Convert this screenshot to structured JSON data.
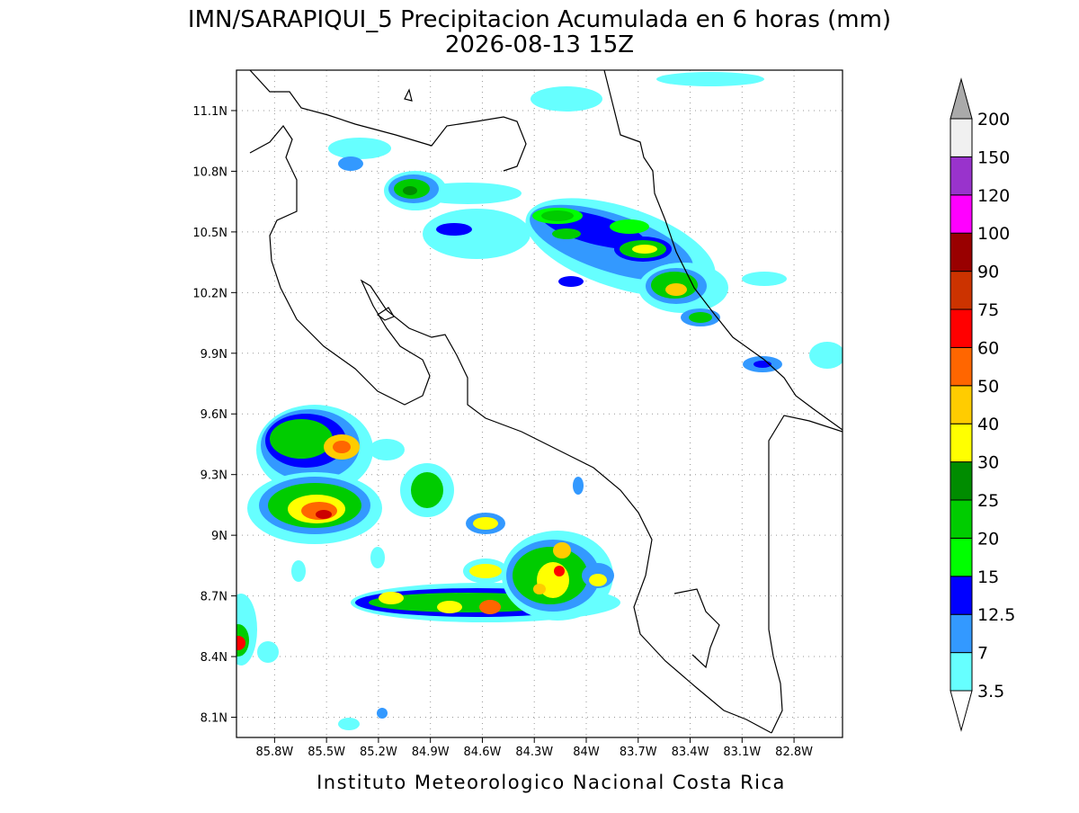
{
  "title": "IMN/SARAPIQUI_5 Precipitacion Acumulada en 6 horas (mm)",
  "subtitle": "2026-08-13 15Z",
  "footer": "Instituto Meteorologico Nacional Costa Rica",
  "map": {
    "xlim": [
      -86.02,
      -82.52
    ],
    "ylim": [
      8.0,
      11.3
    ],
    "xticks": [
      {
        "value": -85.8,
        "label": "85.8W"
      },
      {
        "value": -85.5,
        "label": "85.5W"
      },
      {
        "value": -85.2,
        "label": "85.2W"
      },
      {
        "value": -84.9,
        "label": "84.9W"
      },
      {
        "value": -84.6,
        "label": "84.6W"
      },
      {
        "value": -84.3,
        "label": "84.3W"
      },
      {
        "value": -84.0,
        "label": "84W"
      },
      {
        "value": -83.7,
        "label": "83.7W"
      },
      {
        "value": -83.4,
        "label": "83.4W"
      },
      {
        "value": -83.1,
        "label": "83.1W"
      },
      {
        "value": -82.8,
        "label": "82.8W"
      }
    ],
    "yticks": [
      {
        "value": 11.1,
        "label": "11.1N"
      },
      {
        "value": 10.8,
        "label": "10.8N"
      },
      {
        "value": 10.5,
        "label": "10.5N"
      },
      {
        "value": 10.2,
        "label": "10.2N"
      },
      {
        "value": 9.9,
        "label": "9.9N"
      },
      {
        "value": 9.6,
        "label": "9.6N"
      },
      {
        "value": 9.3,
        "label": "9.3N"
      },
      {
        "value": 9.0,
        "label": "9N"
      },
      {
        "value": 8.7,
        "label": "8.7N"
      },
      {
        "value": 8.4,
        "label": "8.4N"
      },
      {
        "value": 8.1,
        "label": "8.1N"
      }
    ],
    "grid": true
  },
  "colorbar": {
    "boundaries": [
      3.5,
      7,
      12.5,
      15,
      20,
      25,
      30,
      40,
      50,
      60,
      75,
      90,
      100,
      120,
      150,
      200
    ],
    "colors": [
      "#66ffff",
      "#3399ff",
      "#0000ff",
      "#00ff00",
      "#00cc00",
      "#008c00",
      "#ffff00",
      "#ffcc00",
      "#ff6600",
      "#ff0000",
      "#cc3300",
      "#990000",
      "#ff00ff",
      "#9933cc",
      "#f0f0f0"
    ],
    "over_color": "#aaaaaa",
    "under_color": "#ffffff"
  }
}
